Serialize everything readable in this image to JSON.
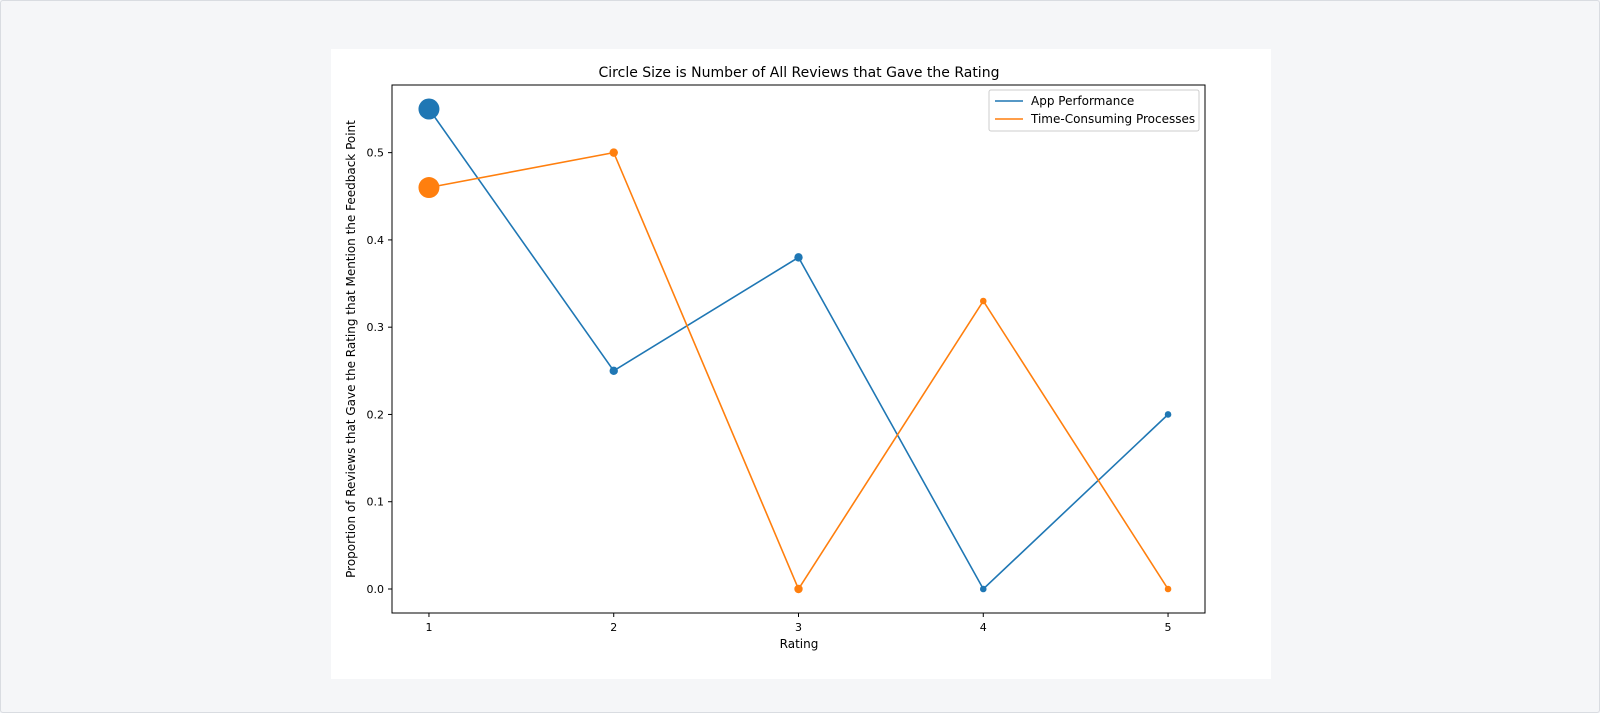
{
  "chart_data": {
    "type": "scatter",
    "title": "Circle Size is Number of All Reviews that Gave the Rating",
    "xlabel": "Rating",
    "ylabel": "Proportion of Reviews that Gave the Rating that Mention the Feedback Point",
    "x": [
      1,
      2,
      3,
      4,
      5
    ],
    "xticks": [
      "1",
      "2",
      "3",
      "4",
      "5"
    ],
    "yticks": [
      "0.0",
      "0.1",
      "0.2",
      "0.3",
      "0.4",
      "0.5"
    ],
    "xlim": [
      0.8,
      5.2
    ],
    "ylim": [
      -0.0275,
      0.5775
    ],
    "grid": false,
    "legend_position": "top-right",
    "marker_sizes_relative": [
      5,
      2,
      2,
      1,
      1
    ],
    "series": [
      {
        "name": "App Performance",
        "color": "#1f77b4",
        "values": [
          0.55,
          0.25,
          0.38,
          0.0,
          0.2
        ]
      },
      {
        "name": "Time-Consuming Processes",
        "color": "#ff7f0e",
        "values": [
          0.46,
          0.5,
          0.0,
          0.33,
          0.0
        ]
      }
    ]
  }
}
